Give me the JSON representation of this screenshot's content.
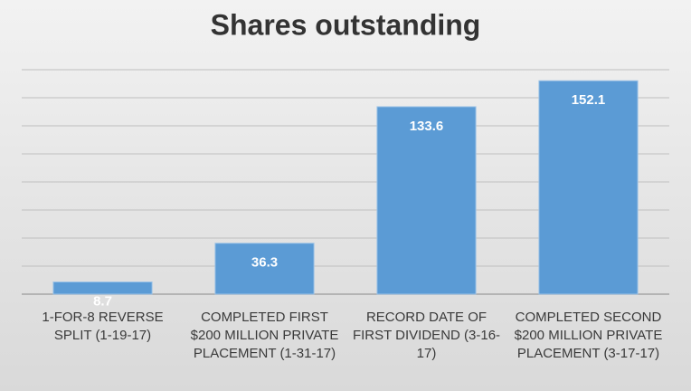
{
  "chart_data": {
    "type": "bar",
    "title": "Shares outstanding",
    "categories": [
      "1-FOR-8 REVERSE SPLIT (1-19-17)",
      "COMPLETED FIRST $200 MILLION PRIVATE PLACEMENT (1-31-17)",
      "RECORD DATE OF FIRST DIVIDEND (3-16-17)",
      "COMPLETED SECOND $200 MILLION PRIVATE PLACEMENT (3-17-17)"
    ],
    "values": [
      8.7,
      36.3,
      133.6,
      152.1
    ],
    "color": "#5b9bd5",
    "ylim": [
      0,
      160
    ],
    "yticks": [
      0,
      20,
      40,
      60,
      80,
      100,
      120,
      140,
      160
    ],
    "grid": true
  }
}
